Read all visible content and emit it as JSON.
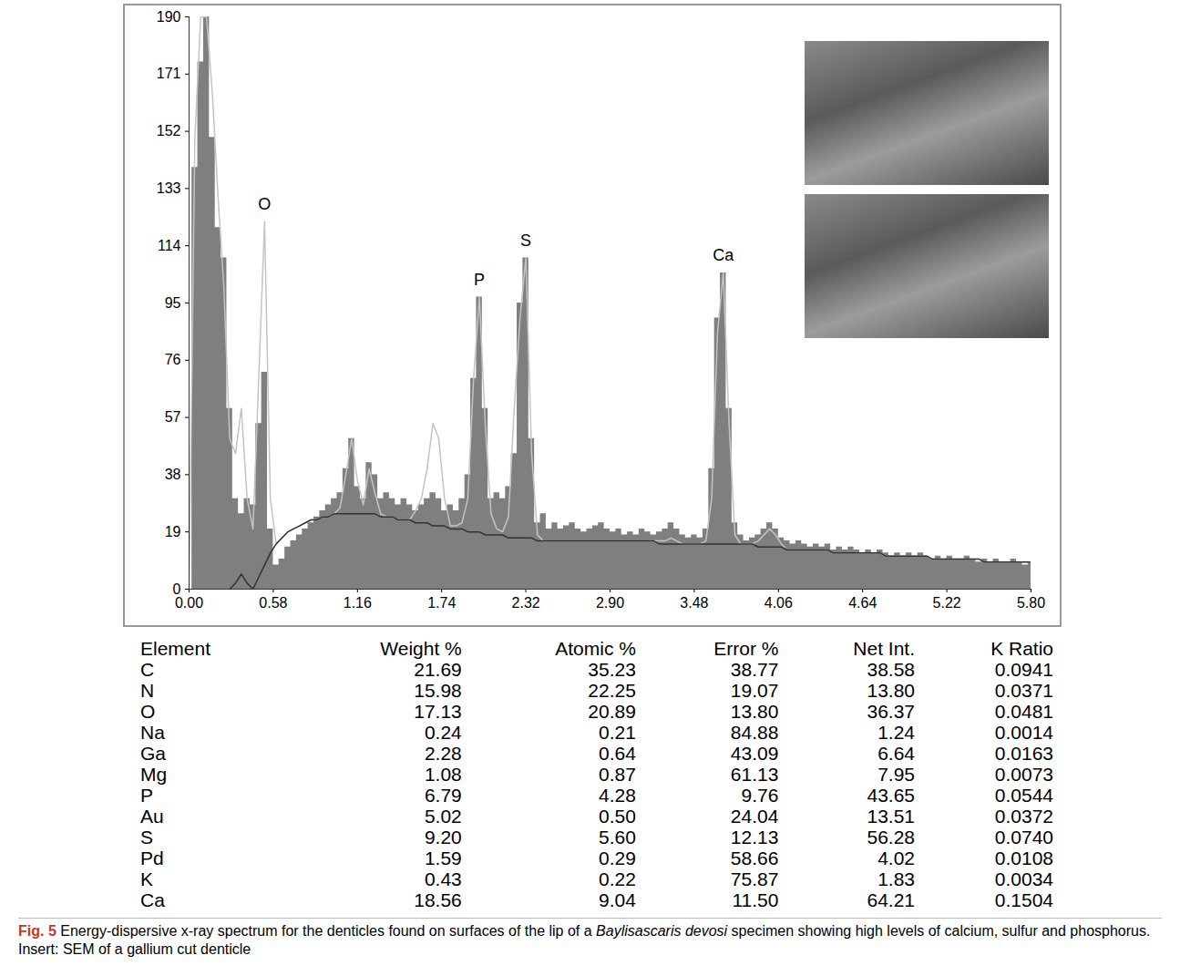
{
  "chart_data": {
    "type": "area",
    "xlim": [
      0,
      5.8
    ],
    "xticks": [
      {
        "value": 0,
        "label": "0.00"
      },
      0.58,
      1.16,
      1.74,
      2.32,
      {
        "value": 2.9,
        "label": "2.90"
      },
      3.48,
      4.06,
      4.64,
      5.22,
      {
        "value": 5.8,
        "label": "5.80"
      }
    ],
    "ylim": [
      0,
      190
    ],
    "yticks": [
      0,
      19,
      38,
      57,
      76,
      95,
      114,
      133,
      152,
      171,
      190
    ],
    "x": [
      0,
      0.04,
      0.08,
      0.12,
      0.16,
      0.2,
      0.24,
      0.28,
      0.32,
      0.36,
      0.4,
      0.44,
      0.48,
      0.52,
      0.56,
      0.6,
      0.64,
      0.68,
      0.72,
      0.76,
      0.8,
      0.84,
      0.88,
      0.92,
      0.96,
      1,
      1.04,
      1.08,
      1.12,
      1.16,
      1.2,
      1.24,
      1.28,
      1.32,
      1.36,
      1.4,
      1.44,
      1.48,
      1.52,
      1.56,
      1.6,
      1.64,
      1.68,
      1.72,
      1.76,
      1.8,
      1.84,
      1.88,
      1.92,
      1.96,
      2,
      2.04,
      2.08,
      2.12,
      2.16,
      2.2,
      2.24,
      2.28,
      2.32,
      2.36,
      2.4,
      2.44,
      2.48,
      2.52,
      2.56,
      2.6,
      2.64,
      2.68,
      2.72,
      2.76,
      2.8,
      2.84,
      2.88,
      2.92,
      2.96,
      3,
      3.04,
      3.08,
      3.12,
      3.16,
      3.2,
      3.24,
      3.28,
      3.32,
      3.36,
      3.4,
      3.44,
      3.48,
      3.52,
      3.56,
      3.6,
      3.64,
      3.68,
      3.72,
      3.76,
      3.8,
      3.84,
      3.88,
      3.92,
      3.96,
      4,
      4.04,
      4.08,
      4.12,
      4.16,
      4.2,
      4.24,
      4.28,
      4.32,
      4.36,
      4.4,
      4.44,
      4.48,
      4.52,
      4.56,
      4.6,
      4.64,
      4.68,
      4.72,
      4.76,
      4.8,
      4.84,
      4.88,
      4.92,
      4.96,
      5,
      5.04,
      5.08,
      5.12,
      5.16,
      5.2,
      5.24,
      5.28,
      5.32,
      5.36,
      5.4,
      5.44,
      5.48,
      5.52,
      5.56,
      5.6,
      5.64,
      5.68,
      5.72,
      5.76,
      5.8
    ],
    "series": [
      {
        "type": "area",
        "color": "#7f7f7f",
        "values": [
          0,
          140,
          175,
          190,
          150,
          120,
          110,
          60,
          30,
          25,
          30,
          28,
          55,
          72,
          20,
          8,
          10,
          14,
          16,
          18,
          20,
          22,
          24,
          26,
          28,
          30,
          32,
          40,
          50,
          34,
          30,
          42,
          38,
          30,
          32,
          30,
          28,
          30,
          28,
          26,
          28,
          30,
          32,
          30,
          26,
          28,
          26,
          30,
          38,
          70,
          97,
          60,
          30,
          32,
          30,
          34,
          45,
          95,
          110,
          50,
          22,
          25,
          20,
          22,
          20,
          21,
          22,
          20,
          19,
          20,
          21,
          22,
          20,
          19,
          20,
          18,
          19,
          18,
          20,
          19,
          18,
          19,
          20,
          22,
          20,
          18,
          17,
          18,
          17,
          20,
          40,
          90,
          105,
          60,
          22,
          18,
          16,
          17,
          18,
          20,
          22,
          20,
          17,
          16,
          15,
          16,
          15,
          14,
          15,
          14,
          15,
          13,
          14,
          13,
          14,
          13,
          12,
          13,
          12,
          13,
          12,
          11,
          12,
          11,
          12,
          11,
          12,
          11,
          10,
          11,
          10,
          11,
          10,
          10,
          11,
          10,
          9,
          10,
          9,
          10,
          9,
          9,
          10,
          9,
          8,
          9
        ]
      },
      {
        "type": "line",
        "color": "#c4c4c4",
        "values": [
          0,
          150,
          190,
          190,
          165,
          130,
          100,
          50,
          45,
          60,
          30,
          20,
          70,
          122,
          30,
          15,
          17,
          19,
          20,
          21,
          22,
          23,
          23,
          24,
          24,
          25,
          27,
          38,
          50,
          36,
          28,
          40,
          32,
          25,
          24,
          24,
          23,
          23,
          23,
          26,
          30,
          40,
          55,
          50,
          30,
          21,
          21,
          22,
          30,
          70,
          97,
          55,
          25,
          20,
          19,
          24,
          60,
          90,
          110,
          45,
          18,
          16,
          16,
          16,
          16,
          16,
          16,
          16,
          16,
          16,
          16,
          16,
          16,
          16,
          16,
          16,
          16,
          16,
          16,
          16,
          16,
          16,
          16,
          17,
          16,
          15,
          15,
          15,
          15,
          16,
          30,
          85,
          105,
          55,
          18,
          15,
          15,
          15,
          16,
          18,
          20,
          18,
          15,
          13,
          13,
          13,
          13,
          13,
          13,
          13,
          13,
          12,
          12,
          12,
          12,
          12,
          12,
          12,
          12,
          12,
          11,
          11,
          11,
          11,
          11,
          11,
          11,
          11,
          10,
          10,
          10,
          10,
          10,
          10,
          10,
          10,
          10,
          9,
          9,
          9,
          9,
          9,
          9,
          9,
          9,
          9
        ]
      },
      {
        "type": "line",
        "color": "#333333",
        "values": [
          null,
          null,
          null,
          null,
          null,
          null,
          null,
          0,
          2,
          5,
          2,
          0,
          4,
          8,
          12,
          15,
          17,
          19,
          20,
          21,
          22,
          23,
          23,
          24,
          24,
          25,
          25,
          25,
          25,
          25,
          25,
          25,
          25,
          24,
          24,
          24,
          23,
          23,
          23,
          22,
          22,
          22,
          21,
          21,
          21,
          20,
          20,
          20,
          19,
          19,
          19,
          18,
          18,
          18,
          18,
          17,
          17,
          17,
          17,
          17,
          16,
          16,
          16,
          16,
          16,
          16,
          16,
          16,
          16,
          16,
          16,
          16,
          16,
          16,
          16,
          16,
          16,
          16,
          16,
          16,
          16,
          15,
          15,
          15,
          15,
          15,
          15,
          15,
          15,
          15,
          15,
          15,
          15,
          15,
          15,
          15,
          15,
          15,
          14,
          14,
          14,
          14,
          14,
          13,
          13,
          13,
          13,
          13,
          13,
          13,
          13,
          12,
          12,
          12,
          12,
          12,
          12,
          12,
          12,
          12,
          11,
          11,
          11,
          11,
          11,
          11,
          11,
          11,
          10,
          10,
          10,
          10,
          10,
          10,
          10,
          10,
          10,
          9,
          9,
          9,
          9,
          9,
          9,
          9,
          9,
          9
        ]
      }
    ],
    "annotations": [
      {
        "text": "O",
        "x": 0.52,
        "y": 126
      },
      {
        "text": "P",
        "x": 2.0,
        "y": 101
      },
      {
        "text": "S",
        "x": 2.32,
        "y": 114
      },
      {
        "text": "Ca",
        "x": 3.68,
        "y": 109
      }
    ]
  },
  "table": {
    "columns": [
      "Element",
      "Weight %",
      "Atomic %",
      "Error %",
      "Net Int.",
      "K Ratio"
    ],
    "rows": [
      [
        "C",
        "21.69",
        "35.23",
        "38.77",
        "38.58",
        "0.0941"
      ],
      [
        "N",
        "15.98",
        "22.25",
        "19.07",
        "13.80",
        "0.0371"
      ],
      [
        "O",
        "17.13",
        "20.89",
        "13.80",
        "36.37",
        "0.0481"
      ],
      [
        "Na",
        "0.24",
        "0.21",
        "84.88",
        "1.24",
        "0.0014"
      ],
      [
        "Ga",
        "2.28",
        "0.64",
        "43.09",
        "6.64",
        "0.0163"
      ],
      [
        "Mg",
        "1.08",
        "0.87",
        "61.13",
        "7.95",
        "0.0073"
      ],
      [
        "P",
        "6.79",
        "4.28",
        "9.76",
        "43.65",
        "0.0544"
      ],
      [
        "Au",
        "5.02",
        "0.50",
        "24.04",
        "13.51",
        "0.0372"
      ],
      [
        "S",
        "9.20",
        "5.60",
        "12.13",
        "56.28",
        "0.0740"
      ],
      [
        "Pd",
        "1.59",
        "0.29",
        "58.66",
        "4.02",
        "0.0108"
      ],
      [
        "K",
        "0.43",
        "0.22",
        "75.87",
        "1.83",
        "0.0034"
      ],
      [
        "Ca",
        "18.56",
        "9.04",
        "11.50",
        "64.21",
        "0.1504"
      ]
    ]
  },
  "caption": {
    "label": "Fig. 5",
    "parts": [
      {
        "text": "Energy-dispersive x-ray spectrum for the denticles found on surfaces of the lip of a "
      },
      {
        "text": "Baylisascaris devosi",
        "italic": true
      },
      {
        "text": " specimen showing high levels of calcium, sulfur and phosphorus. Insert: SEM of a gallium cut denticle"
      }
    ]
  }
}
